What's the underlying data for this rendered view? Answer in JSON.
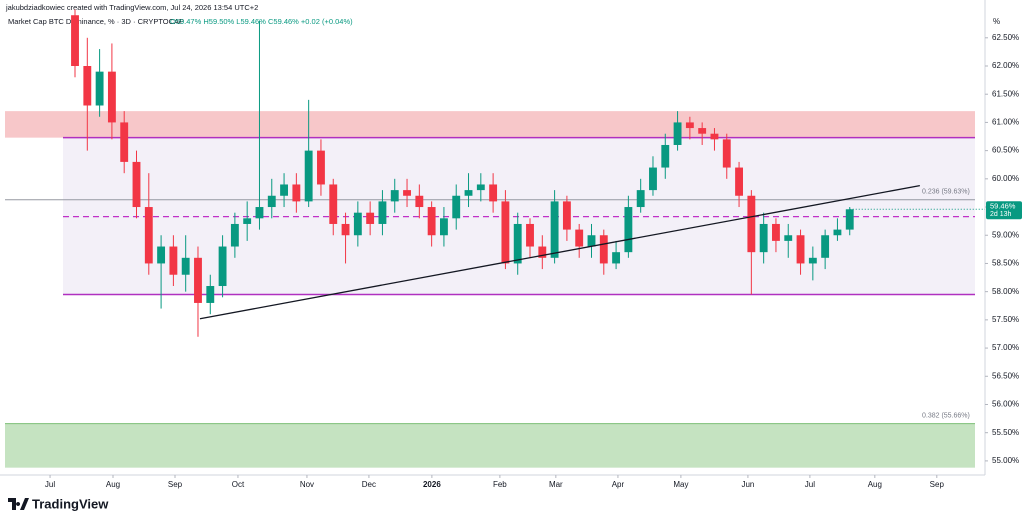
{
  "header": {
    "credit": "jakubdziadkowiec created with TradingView.com, Jul 24, 2026 13:54 UTC+2",
    "symbol": "Market Cap BTC Dominance, % · 3D · CRYPTOCAP",
    "ohlc": "O59.47% H59.50% L59.46% C59.46% +0.02 (+0.04%)"
  },
  "footer": {
    "brand": "TradingView"
  },
  "chart_data": {
    "type": "candlestick",
    "up_color": "#089981",
    "down_color": "#f23645",
    "candles": {
      "open": [
        62.9,
        62.0,
        61.3,
        61.9,
        61.0,
        60.3,
        59.5,
        58.5,
        58.8,
        58.3,
        58.6,
        57.8,
        58.1,
        58.8,
        59.2,
        59.3,
        59.5,
        59.7,
        59.9,
        59.6,
        60.5,
        59.9,
        59.2,
        59.0,
        59.4,
        59.2,
        59.6,
        59.8,
        59.7,
        59.5,
        59.0,
        59.3,
        59.7,
        59.8,
        59.9,
        59.6,
        58.5,
        59.2,
        58.8,
        58.6,
        59.6,
        59.1,
        58.8,
        59.0,
        58.5,
        58.7,
        59.5,
        59.8,
        60.2,
        60.6,
        61.0,
        60.9,
        60.8,
        60.7,
        60.2,
        59.7,
        58.7,
        59.2,
        58.9,
        59.0,
        58.5,
        58.6,
        59.0,
        59.1
      ],
      "high": [
        63.0,
        62.5,
        62.3,
        62.4,
        61.2,
        60.5,
        60.1,
        59.0,
        59.0,
        59.0,
        58.8,
        58.3,
        59.0,
        59.4,
        59.6,
        62.8,
        60.0,
        60.1,
        60.1,
        61.4,
        60.7,
        60.0,
        59.4,
        59.6,
        59.6,
        59.8,
        60.0,
        60.0,
        59.9,
        59.6,
        59.5,
        59.9,
        60.1,
        60.1,
        60.1,
        59.8,
        59.4,
        59.3,
        59.0,
        59.8,
        59.7,
        59.2,
        59.2,
        59.1,
        58.9,
        59.7,
        60.0,
        60.4,
        60.8,
        61.2,
        61.1,
        61.0,
        60.9,
        60.8,
        60.3,
        59.8,
        59.4,
        59.3,
        59.2,
        59.1,
        58.8,
        59.1,
        59.3,
        59.5
      ],
      "low": [
        61.8,
        60.5,
        61.1,
        60.7,
        60.1,
        59.3,
        58.3,
        57.7,
        58.1,
        58.0,
        57.2,
        57.6,
        57.9,
        58.6,
        58.9,
        59.1,
        59.3,
        59.5,
        59.4,
        59.5,
        59.7,
        59.0,
        58.5,
        58.8,
        59.0,
        59.0,
        59.4,
        59.5,
        59.3,
        58.8,
        58.8,
        59.1,
        59.5,
        59.6,
        59.4,
        58.4,
        58.3,
        58.6,
        58.4,
        58.5,
        58.9,
        58.6,
        58.6,
        58.3,
        58.4,
        58.6,
        59.4,
        59.7,
        60.0,
        60.5,
        60.7,
        60.6,
        60.5,
        60.0,
        59.5,
        57.95,
        58.5,
        58.7,
        58.6,
        58.3,
        58.2,
        58.4,
        58.9,
        59.0
      ],
      "close": [
        62.0,
        61.3,
        61.9,
        61.0,
        60.3,
        59.5,
        58.5,
        58.8,
        58.3,
        58.6,
        57.8,
        58.1,
        58.8,
        59.2,
        59.3,
        59.5,
        59.7,
        59.9,
        59.6,
        60.5,
        59.9,
        59.2,
        59.0,
        59.4,
        59.2,
        59.6,
        59.8,
        59.7,
        59.5,
        59.0,
        59.3,
        59.7,
        59.8,
        59.9,
        59.6,
        58.5,
        59.2,
        58.8,
        58.6,
        59.6,
        59.1,
        58.8,
        59.0,
        58.5,
        58.7,
        59.5,
        59.8,
        60.2,
        60.6,
        61.0,
        60.9,
        60.8,
        60.7,
        60.2,
        59.7,
        58.7,
        59.2,
        58.9,
        59.0,
        58.5,
        58.6,
        59.0,
        59.1,
        59.46
      ]
    },
    "xlim": [
      -6.1,
      74
    ],
    "xticks": [
      {
        "value": -2.03,
        "label": "Jul"
      },
      {
        "value": 3.09,
        "label": "Aug"
      },
      {
        "value": 8.13,
        "label": "Sep"
      },
      {
        "value": 13.25,
        "label": "Oct"
      },
      {
        "value": 18.86,
        "label": "Nov"
      },
      {
        "value": 23.9,
        "label": "Dec"
      },
      {
        "value": 29.02,
        "label": "2026"
      },
      {
        "value": 34.55,
        "label": "Feb"
      },
      {
        "value": 39.1,
        "label": "Mar"
      },
      {
        "value": 44.15,
        "label": "Apr"
      },
      {
        "value": 49.27,
        "label": "May"
      },
      {
        "value": 54.72,
        "label": "Jun"
      },
      {
        "value": 59.76,
        "label": "Jul"
      },
      {
        "value": 65.04,
        "label": "Aug"
      },
      {
        "value": 70.08,
        "label": "Sep"
      }
    ],
    "ylim": [
      54.75,
      63.17
    ],
    "y_unit": "%",
    "yticks": [
      {
        "value": 62.5,
        "label": "62.50%"
      },
      {
        "value": 62.0,
        "label": "62.00%"
      },
      {
        "value": 61.5,
        "label": "61.50%"
      },
      {
        "value": 61.0,
        "label": "61.00%"
      },
      {
        "value": 60.5,
        "label": "60.50%"
      },
      {
        "value": 60.0,
        "label": "60.00%"
      },
      {
        "value": 59.5,
        "label": "59.50%"
      },
      {
        "value": 59.0,
        "label": "59.00%"
      },
      {
        "value": 58.5,
        "label": "58.50%"
      },
      {
        "value": 58.0,
        "label": "58.00%"
      },
      {
        "value": 57.5,
        "label": "57.50%"
      },
      {
        "value": 57.0,
        "label": "57.00%"
      },
      {
        "value": 56.5,
        "label": "56.50%"
      },
      {
        "value": 56.0,
        "label": "56.00%"
      },
      {
        "value": 55.5,
        "label": "55.50%"
      },
      {
        "value": 55.0,
        "label": "55.00%"
      }
    ],
    "zones": [
      {
        "from": 60.73,
        "to": 61.2,
        "color": "#f7c7c9"
      },
      {
        "from": 57.95,
        "to": 60.73,
        "color": "#f3f0f8"
      },
      {
        "from": 54.88,
        "to": 55.66,
        "color": "#c5e3c1"
      }
    ],
    "range_lines": [
      {
        "value": 60.73,
        "color": "#b030c0"
      },
      {
        "value": 57.95,
        "color": "#b030c0"
      }
    ],
    "mid_line": {
      "value": 59.33,
      "color": "#c030c8"
    },
    "fib_levels": [
      {
        "value": 59.63,
        "label": "0.236 (59.63%)"
      },
      {
        "value": 55.66,
        "label": "0.382 (55.66%)"
      }
    ],
    "trendline": {
      "x": [
        10.16,
        68.7
      ],
      "y": [
        57.52,
        59.88
      ]
    },
    "last_price": {
      "value": 59.46,
      "label": "59.46%",
      "countdown": "2d 13h"
    }
  }
}
